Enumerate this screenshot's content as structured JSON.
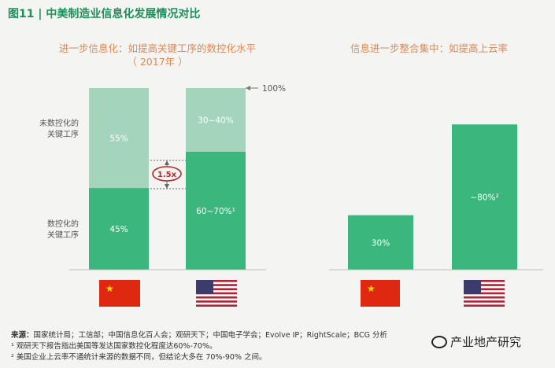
{
  "figure_title": "图11 | 中美制造业信息化发展情况对比",
  "chart_data": [
    {
      "type": "bar",
      "subtype": "stacked-100",
      "title": "进一步信息化：如提高关键工序的数控化水平",
      "subtitle": "（ 2017年 ）",
      "categories": [
        "China",
        "United States"
      ],
      "series": [
        {
          "name": "数控化的关键工序",
          "values": [
            45,
            65
          ],
          "labels": [
            "45%",
            "60~70%¹"
          ],
          "color": "#3bb77e"
        },
        {
          "name": "未数控化的关键工序",
          "values": [
            55,
            35
          ],
          "labels": [
            "55%",
            "30~40%"
          ],
          "color": "#a4d4bb"
        }
      ],
      "ylim": [
        0,
        100
      ],
      "annotations": [
        "1.5x",
        "100%"
      ]
    },
    {
      "type": "bar",
      "title": "信息进一步整合集中：如提高上云率",
      "categories": [
        "China",
        "United States"
      ],
      "values": [
        30,
        80
      ],
      "labels": [
        "30%",
        "~80%²"
      ],
      "color": "#3bb77e",
      "ylim": [
        0,
        100
      ]
    }
  ],
  "footnotes": {
    "source_label": "来源：",
    "source_text": "国家统计局；工信部；中国信息化百人会；观研天下；中国电子学会；Evolve IP；RightScale；BCG 分析",
    "note1": "¹ 观研天下报告指出美国等发达国家数控化程度达60%-70%。",
    "note2": "² 美国企业上云率不通统计来源的数据不同，但结论大多在 70%-90% 之间。"
  },
  "watermark": "产业地产研究",
  "flags": [
    "china-flag",
    "us-flag"
  ]
}
